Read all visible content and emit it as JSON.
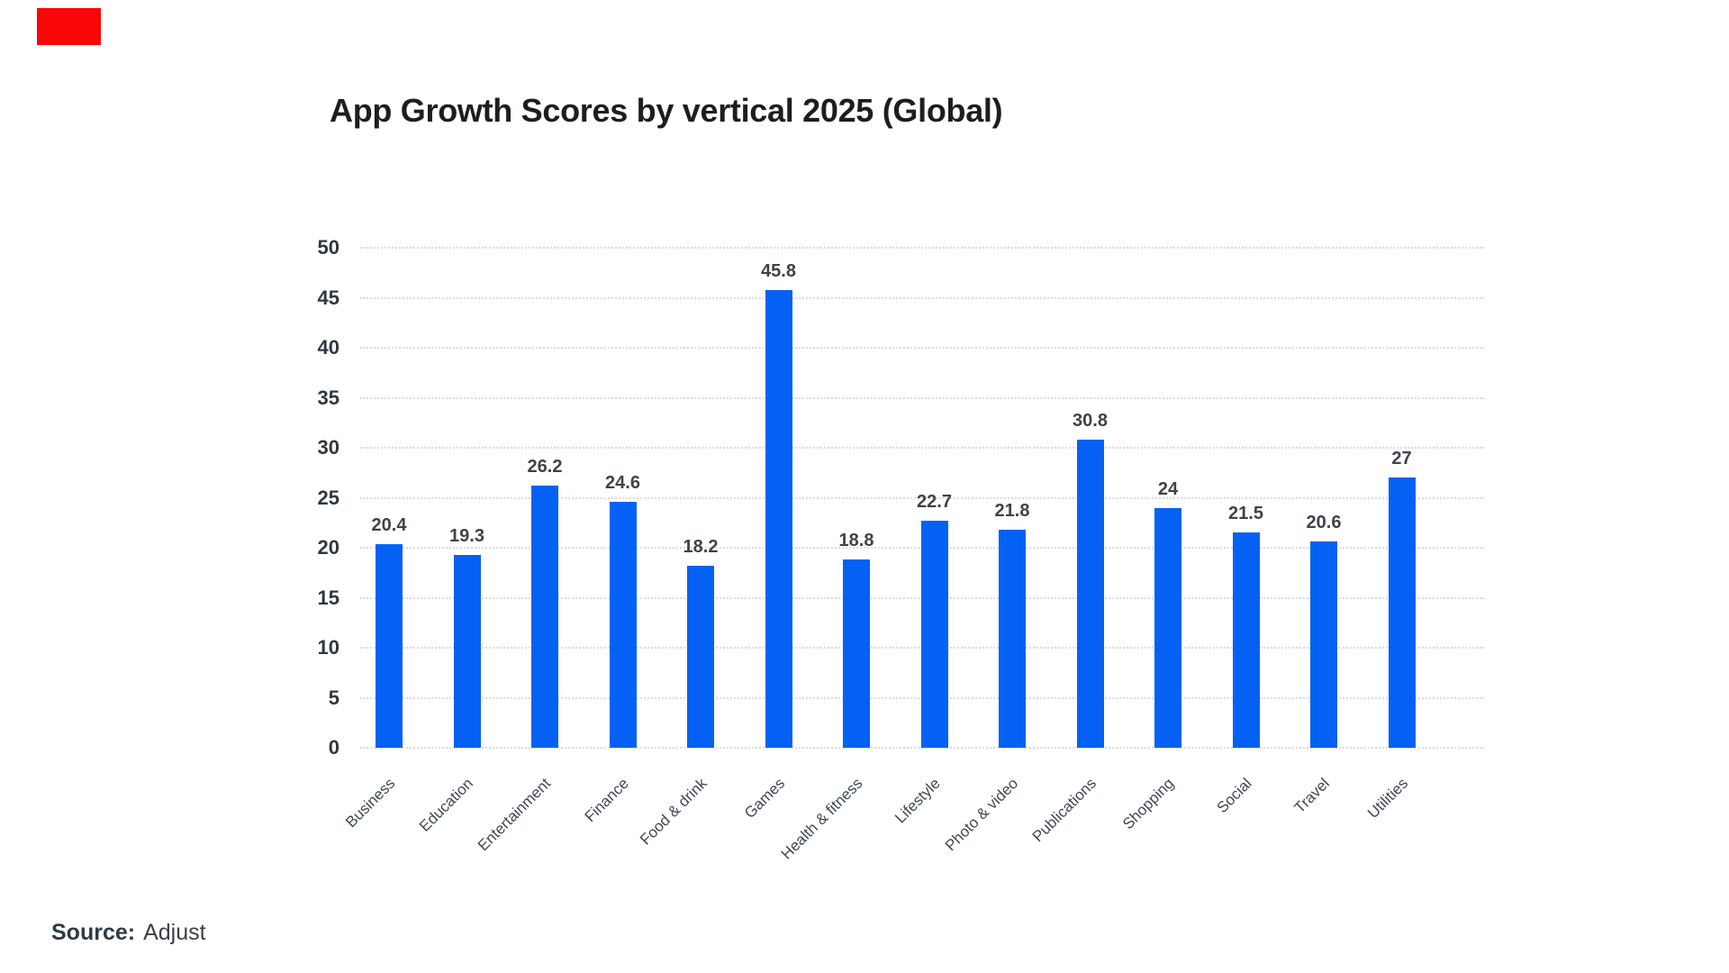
{
  "badge": {
    "color": "#f90606"
  },
  "title": "App Growth Scores by vertical 2025 (Global)",
  "source": {
    "label": "Source:",
    "value": "Adjust"
  },
  "chart_data": {
    "type": "bar",
    "title": "App Growth Scores by vertical 2025 (Global)",
    "categories": [
      "Business",
      "Education",
      "Entertainment",
      "Finance",
      "Food & drink",
      "Games",
      "Health & fitness",
      "Lifestyle",
      "Photo & video",
      "Publications",
      "Shopping",
      "Social",
      "Travel",
      "Utilities"
    ],
    "values": [
      20.4,
      19.3,
      26.2,
      24.6,
      18.2,
      45.8,
      18.8,
      22.7,
      21.8,
      30.8,
      24,
      21.5,
      20.6,
      27
    ],
    "xlabel": "",
    "ylabel": "",
    "ylim": [
      0,
      50
    ],
    "y_ticks": [
      0,
      5,
      10,
      15,
      20,
      25,
      30,
      35,
      40,
      45,
      50
    ],
    "grid": "horizontal-dotted",
    "legend": "none",
    "bar_color": "#0561f4",
    "grid_color": "#dbdbdb",
    "value_label_color": "#3e434a",
    "axis_label_color": "#3f4854"
  }
}
